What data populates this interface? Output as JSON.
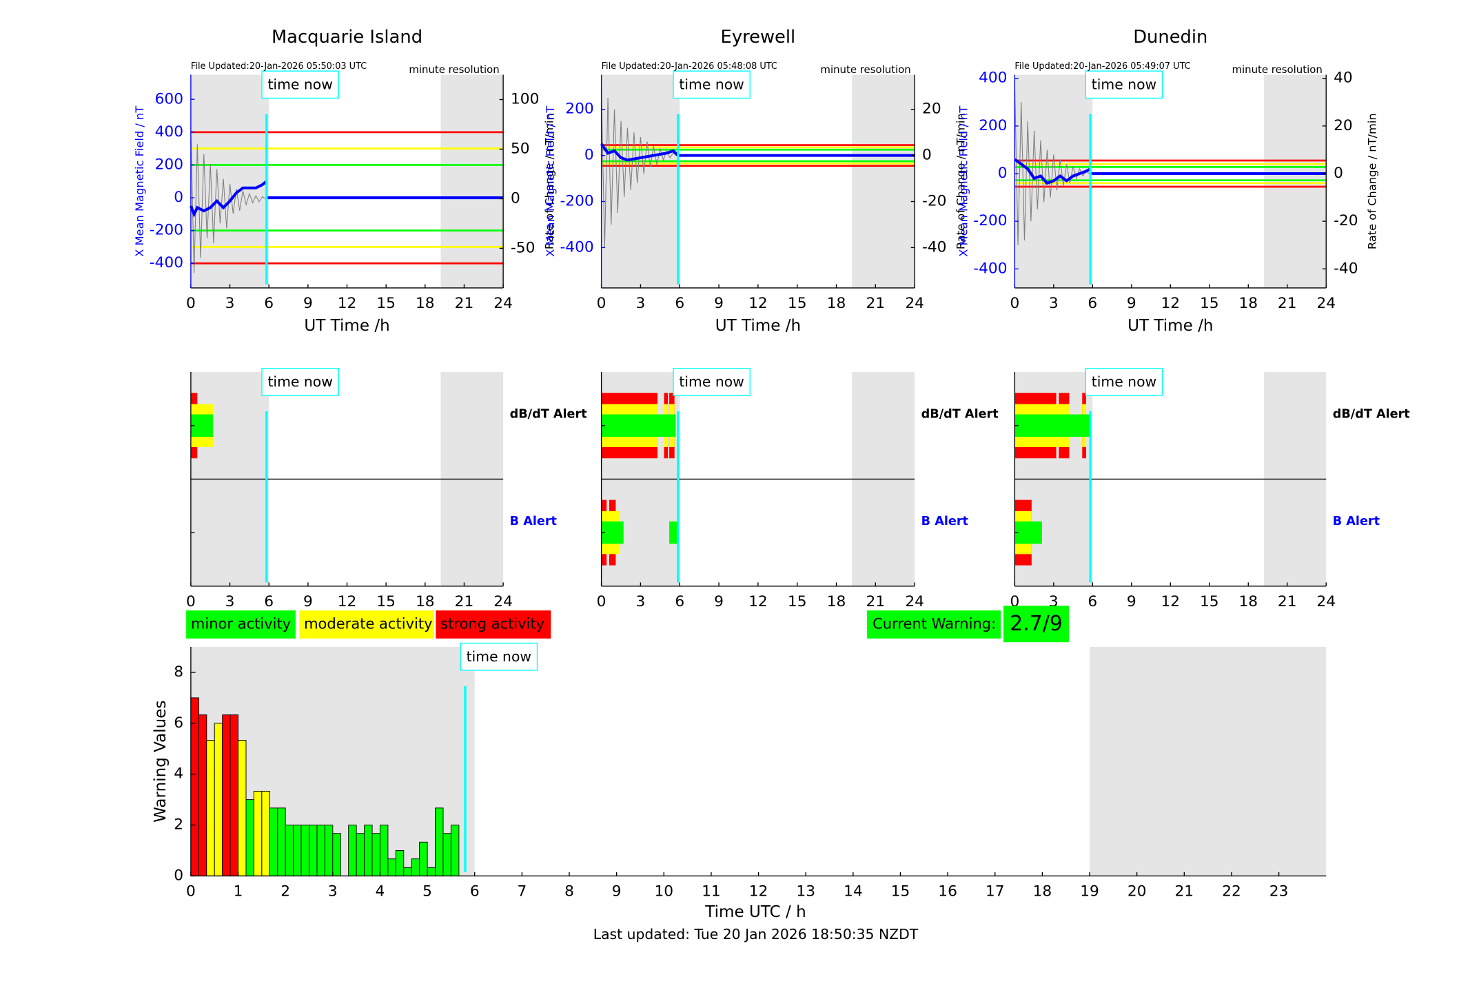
{
  "chart_data": [
    {
      "type": "line",
      "title": "Macquarie Island",
      "subtitle": "File Updated:20-Jan-2026 05:50:03 UTC",
      "annotation": "minute resolution",
      "time_now": 5.82,
      "time_now_label": "time now",
      "xlabel": "UT Time /h",
      "ylabel": "X Mean Magnetic Field / nT",
      "y2label": "Rate of Change / nT/min",
      "xlim": [
        0,
        24
      ],
      "xticks": [
        0,
        3,
        6,
        9,
        12,
        15,
        18,
        21,
        24
      ],
      "ylim": [
        -550,
        750
      ],
      "yticks": [
        -400,
        -200,
        0,
        200,
        400,
        600
      ],
      "y2lim": [
        -90,
        125
      ],
      "y2ticks": [
        -50,
        0,
        50,
        100
      ],
      "shaded": [
        [
          0,
          6
        ],
        [
          19.2,
          24
        ]
      ],
      "thresholds": [
        {
          "value": 400,
          "color": "#ff0000"
        },
        {
          "value": 300,
          "color": "#ffff00"
        },
        {
          "value": 200,
          "color": "#00ff00"
        },
        {
          "value": -200,
          "color": "#00ff00"
        },
        {
          "value": -300,
          "color": "#ffff00"
        },
        {
          "value": -400,
          "color": "#ff0000"
        }
      ],
      "series": [
        {
          "color": "#808080",
          "axis": "y2",
          "x": [
            0,
            0.25,
            0.5,
            0.75,
            1,
            1.25,
            1.5,
            1.75,
            2,
            2.25,
            2.5,
            2.75,
            3,
            3.25,
            3.5,
            3.75,
            4,
            4.25,
            4.5,
            4.75,
            5,
            5.25,
            5.5,
            5.75
          ],
          "values": [
            70,
            -75,
            55,
            -60,
            45,
            -40,
            35,
            -45,
            30,
            -25,
            20,
            -30,
            15,
            -15,
            10,
            -12,
            8,
            -6,
            5,
            -4,
            3,
            -3,
            2,
            0
          ]
        },
        {
          "color": "#0000ff",
          "x": [
            0,
            0.25,
            0.5,
            1,
            1.5,
            2,
            2.5,
            3,
            3.5,
            4,
            4.5,
            5,
            5.5,
            5.82,
            5.85,
            5.9,
            24
          ],
          "values": [
            -50,
            -100,
            -60,
            -80,
            -60,
            -20,
            -60,
            -20,
            30,
            60,
            60,
            60,
            80,
            100,
            null,
            0,
            0
          ]
        }
      ]
    },
    {
      "type": "line",
      "title": "Eyrewell",
      "subtitle": "File Updated:20-Jan-2026 05:48:08 UTC",
      "annotation": "minute resolution",
      "time_now": 5.87,
      "time_now_label": "time now",
      "xlabel": "UT Time /h",
      "ylabel": "X Mean Magnetic Field / nT",
      "y2label": "Rate of Change / nT/min",
      "xlim": [
        0,
        24
      ],
      "xticks": [
        0,
        3,
        6,
        9,
        12,
        15,
        18,
        21,
        24
      ],
      "ylim": [
        -575,
        350
      ],
      "yticks": [
        -400,
        -200,
        0,
        200
      ],
      "y2lim": [
        -57.5,
        35
      ],
      "y2ticks": [
        -40,
        -20,
        0,
        20
      ],
      "shaded": [
        [
          0,
          6
        ],
        [
          19.2,
          24
        ]
      ],
      "thresholds": [
        {
          "value": 4.5,
          "color": "#ff0000",
          "axis": "y2"
        },
        {
          "value": 3.5,
          "color": "#ffff00",
          "axis": "y2"
        },
        {
          "value": 2.5,
          "color": "#00ff00",
          "axis": "y2"
        },
        {
          "value": -2.5,
          "color": "#00ff00",
          "axis": "y2"
        },
        {
          "value": -3.5,
          "color": "#ffff00",
          "axis": "y2"
        },
        {
          "value": -4.5,
          "color": "#ff0000",
          "axis": "y2"
        }
      ],
      "series": [
        {
          "color": "#808080",
          "axis": "y2",
          "x": [
            0,
            0.25,
            0.5,
            0.75,
            1,
            1.25,
            1.5,
            1.75,
            2,
            2.25,
            2.5,
            2.75,
            3,
            3.25,
            3.5,
            3.75,
            4,
            4.25,
            4.5,
            4.75,
            5,
            5.25,
            5.5,
            5.75
          ],
          "values": [
            30,
            -40,
            25,
            -30,
            20,
            -25,
            15,
            -18,
            12,
            -15,
            10,
            -12,
            8,
            -8,
            6,
            -5,
            4,
            -4,
            3,
            -2,
            2,
            -1,
            1,
            0
          ]
        },
        {
          "color": "#0000ff",
          "x": [
            0,
            0.5,
            1,
            1.5,
            2,
            3,
            4,
            5,
            5.5,
            5.87,
            5.88,
            5.9,
            24
          ],
          "values": [
            50,
            10,
            20,
            -10,
            -20,
            -10,
            0,
            10,
            20,
            0,
            null,
            0,
            0
          ]
        }
      ]
    },
    {
      "type": "line",
      "title": "Dunedin",
      "subtitle": "File Updated:20-Jan-2026 05:49:07 UTC",
      "annotation": "minute resolution",
      "time_now": 5.83,
      "time_now_label": "time now",
      "xlabel": "UT Time /h",
      "ylabel": "X Mean Magnetic Field / nT",
      "y2label": "Rate of Change / nT/min",
      "xlim": [
        0,
        24
      ],
      "xticks": [
        0,
        3,
        6,
        9,
        12,
        15,
        18,
        21,
        24
      ],
      "ylim": [
        -480,
        415
      ],
      "yticks": [
        -400,
        -200,
        0,
        200,
        400
      ],
      "y2lim": [
        -48,
        41.5
      ],
      "y2ticks": [
        -40,
        -20,
        0,
        20,
        40
      ],
      "shaded": [
        [
          0,
          6
        ],
        [
          19.2,
          24
        ]
      ],
      "thresholds": [
        {
          "value": 5.5,
          "color": "#ff0000",
          "axis": "y2"
        },
        {
          "value": 4,
          "color": "#ffff00",
          "axis": "y2"
        },
        {
          "value": 2.8,
          "color": "#00ff00",
          "axis": "y2"
        },
        {
          "value": -2.8,
          "color": "#00ff00",
          "axis": "y2"
        },
        {
          "value": -4,
          "color": "#ffff00",
          "axis": "y2"
        },
        {
          "value": -5.5,
          "color": "#ff0000",
          "axis": "y2"
        }
      ],
      "series": [
        {
          "color": "#808080",
          "axis": "y2",
          "x": [
            0,
            0.25,
            0.5,
            0.75,
            1,
            1.25,
            1.5,
            1.75,
            2,
            2.25,
            2.5,
            2.75,
            3,
            3.25,
            3.5,
            3.75,
            4,
            4.25,
            4.5,
            4.75,
            5,
            5.25,
            5.5,
            5.75
          ],
          "values": [
            38,
            -30,
            30,
            -28,
            22,
            -20,
            18,
            -15,
            14,
            -12,
            10,
            -10,
            8,
            -7,
            6,
            -5,
            4,
            -4,
            3,
            -2,
            2,
            -1,
            1,
            0
          ]
        },
        {
          "color": "#0000ff",
          "x": [
            0,
            0.5,
            1,
            1.5,
            2,
            2.5,
            3,
            3.5,
            4,
            4.5,
            5,
            5.5,
            5.83,
            5.85,
            5.9,
            24
          ],
          "values": [
            60,
            40,
            20,
            -20,
            -10,
            -40,
            -30,
            -10,
            -30,
            -10,
            0,
            10,
            20,
            null,
            0,
            0
          ]
        }
      ]
    },
    {
      "type": "alert",
      "time_now": 5.82,
      "time_now_label": "time now",
      "xlim": [
        0,
        24
      ],
      "xticks": [
        0,
        3,
        6,
        9,
        12,
        15,
        18,
        21,
        24
      ],
      "shaded": [
        [
          0,
          6
        ],
        [
          19.2,
          24
        ]
      ],
      "rows": [
        {
          "label": "dB/dT Alert",
          "label_color": "#000000",
          "series": [
            {
              "color": "#ff0000",
              "intervals": [
                [
                  0,
                  0.5
                ]
              ]
            },
            {
              "color": "#ffff00",
              "intervals": [
                [
                  0,
                  1.7
                ]
              ]
            },
            {
              "color": "#00ff00",
              "intervals": [
                [
                  0,
                  1.7
                ]
              ]
            }
          ]
        },
        {
          "label": "B Alert",
          "label_color": "#0000ff",
          "series": []
        }
      ]
    },
    {
      "type": "alert",
      "time_now": 5.87,
      "time_now_label": "time now",
      "xlim": [
        0,
        24
      ],
      "xticks": [
        0,
        3,
        6,
        9,
        12,
        15,
        18,
        21,
        24
      ],
      "shaded": [
        [
          0,
          6
        ],
        [
          19.2,
          24
        ]
      ],
      "rows": [
        {
          "label": "dB/dT Alert",
          "label_color": "#000000",
          "series": [
            {
              "color": "#ff0000",
              "intervals": [
                [
                  0,
                  4.3
                ],
                [
                  4.8,
                  5.1
                ],
                [
                  5.2,
                  5.6
                ]
              ]
            },
            {
              "color": "#ffff00",
              "intervals": [
                [
                  0,
                  4.3
                ],
                [
                  4.8,
                  5.1
                ],
                [
                  5.2,
                  5.6
                ]
              ]
            },
            {
              "color": "#00ff00",
              "intervals": [
                [
                  0,
                  5.7
                ]
              ]
            }
          ]
        },
        {
          "label": "B Alert",
          "label_color": "#0000ff",
          "series": [
            {
              "color": "#ff0000",
              "intervals": [
                [
                  0,
                  0.4
                ],
                [
                  0.6,
                  1.1
                ]
              ]
            },
            {
              "color": "#ffff00",
              "intervals": [
                [
                  0,
                  1.4
                ]
              ]
            },
            {
              "color": "#00ff00",
              "intervals": [
                [
                  0,
                  1.7
                ],
                [
                  5.2,
                  5.8
                ]
              ]
            }
          ]
        }
      ]
    },
    {
      "type": "alert",
      "time_now": 5.83,
      "time_now_label": "time now",
      "xlim": [
        0,
        24
      ],
      "xticks": [
        0,
        3,
        6,
        9,
        12,
        15,
        18,
        21,
        24
      ],
      "shaded": [
        [
          0,
          6
        ],
        [
          19.2,
          24
        ]
      ],
      "rows": [
        {
          "label": "dB/dT Alert",
          "label_color": "#000000",
          "series": [
            {
              "color": "#ff0000",
              "intervals": [
                [
                  0,
                  3.2
                ],
                [
                  3.4,
                  4.2
                ],
                [
                  5.2,
                  5.5
                ]
              ]
            },
            {
              "color": "#ffff00",
              "intervals": [
                [
                  0,
                  4.2
                ],
                [
                  5.2,
                  5.5
                ]
              ]
            },
            {
              "color": "#00ff00",
              "intervals": [
                [
                  0,
                  5.8
                ]
              ]
            }
          ]
        },
        {
          "label": "B Alert",
          "label_color": "#0000ff",
          "series": [
            {
              "color": "#ff0000",
              "intervals": [
                [
                  0,
                  1.3
                ]
              ]
            },
            {
              "color": "#ffff00",
              "intervals": [
                [
                  0,
                  1.3
                ]
              ]
            },
            {
              "color": "#00ff00",
              "intervals": [
                [
                  0,
                  2.1
                ]
              ]
            }
          ]
        }
      ]
    },
    {
      "type": "bar",
      "time_now": 5.8,
      "time_now_label": "time now",
      "xlabel": "Time UTC / h",
      "ylabel": "Warning Values",
      "xlim": [
        0,
        24
      ],
      "xticks": [
        0,
        1,
        2,
        3,
        4,
        5,
        6,
        7,
        8,
        9,
        10,
        11,
        12,
        13,
        14,
        15,
        16,
        17,
        18,
        19,
        20,
        21,
        22,
        23
      ],
      "ylim": [
        0,
        9
      ],
      "yticks": [
        0,
        2,
        4,
        6,
        8
      ],
      "shaded": [
        [
          0,
          6
        ],
        [
          19,
          24
        ]
      ],
      "x": [
        0,
        0.167,
        0.333,
        0.5,
        0.667,
        0.833,
        1,
        1.167,
        1.333,
        1.5,
        1.667,
        1.833,
        2,
        2.167,
        2.333,
        2.5,
        2.667,
        2.833,
        3,
        3.167,
        3.333,
        3.5,
        3.667,
        3.833,
        4,
        4.167,
        4.333,
        4.5,
        4.667,
        4.833,
        5,
        5.167,
        5.333,
        5.5
      ],
      "values": [
        7,
        6.33,
        5.33,
        6,
        6.33,
        6.33,
        5.33,
        3,
        3.33,
        3.33,
        2.67,
        2.67,
        2,
        2,
        2,
        2,
        2,
        2,
        1.67,
        0,
        2,
        1.67,
        2,
        1.67,
        2,
        0.67,
        1,
        0.33,
        0.67,
        1.33,
        0.33,
        2.67,
        1.67,
        2
      ],
      "colors": [
        "#ff0000",
        "#ff0000",
        "#ffff00",
        "#ffff00",
        "#ff0000",
        "#ff0000",
        "#ffff00",
        "#00ff00",
        "#ffff00",
        "#ffff00",
        "#00ff00",
        "#00ff00",
        "#00ff00",
        "#00ff00",
        "#00ff00",
        "#00ff00",
        "#00ff00",
        "#00ff00",
        "#00ff00",
        "#00ff00",
        "#00ff00",
        "#00ff00",
        "#00ff00",
        "#00ff00",
        "#00ff00",
        "#00ff00",
        "#00ff00",
        "#00ff00",
        "#00ff00",
        "#00ff00",
        "#00ff00",
        "#00ff00",
        "#00ff00",
        "#00ff00"
      ]
    }
  ],
  "legend": {
    "items": [
      {
        "label": "minor activity",
        "color": "#00ff00"
      },
      {
        "label": "moderate activity",
        "color": "#ffff00"
      },
      {
        "label": "strong activity",
        "color": "#ff0000"
      }
    ]
  },
  "warning": {
    "label": "Current Warning:",
    "value": "2.7/9",
    "color": "#00ff00"
  },
  "footer": "Last updated: Tue 20 Jan 2026 18:50:35 NZDT"
}
